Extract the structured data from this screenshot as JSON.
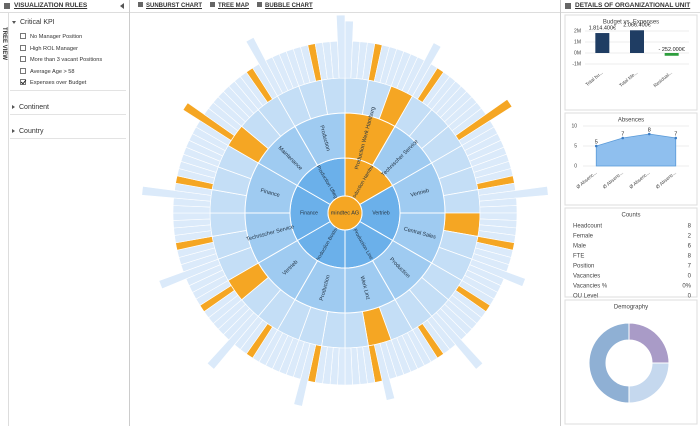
{
  "left_panel": {
    "title": "VISUALIZATION RULES",
    "side_tab": "TREE VIEW",
    "sections": [
      {
        "label": "Critical KPI",
        "expanded": true,
        "items": [
          {
            "label": "No Manager Position",
            "checked": false
          },
          {
            "label": "High ROL Manager",
            "checked": false
          },
          {
            "label": "More than 3 vacant Positions",
            "checked": false
          },
          {
            "label": "Average Age > 58",
            "checked": false
          },
          {
            "label": "Expenses over Budget",
            "checked": true
          }
        ]
      },
      {
        "label": "Continent",
        "expanded": false
      },
      {
        "label": "Country",
        "expanded": false
      }
    ]
  },
  "tabs": [
    "SUNBURST CHART",
    "TREE MAP",
    "BUBBLE CHART"
  ],
  "sunburst": {
    "center": {
      "label": "mindtec AG",
      "highlight": true
    },
    "nodes": [
      {
        "label": "Production Hamburg",
        "highlight": true,
        "children": [
          {
            "label": "Production Werk Hamburg",
            "highlight": true
          },
          {
            "label": "Technischer Service",
            "highlight": false
          }
        ]
      },
      {
        "label": "Vertrieb",
        "highlight": false,
        "children": [
          {
            "label": "Vertrieb",
            "highlight": false
          },
          {
            "label": "Central Sales",
            "highlight": false
          }
        ]
      },
      {
        "label": "Production Linz",
        "highlight": false,
        "children": [
          {
            "label": "Production",
            "highlight": false
          },
          {
            "label": "Werk Linz",
            "highlight": false
          }
        ]
      },
      {
        "label": "Production Boston",
        "highlight": false,
        "children": [
          {
            "label": "Production",
            "highlight": false
          },
          {
            "label": "Vertrieb",
            "highlight": false
          }
        ]
      },
      {
        "label": "Finance",
        "highlight": false,
        "children": [
          {
            "label": "Technischer Service",
            "highlight": false
          },
          {
            "label": "Finance",
            "highlight": false
          }
        ]
      },
      {
        "label": "Production Ufteg",
        "highlight": false,
        "children": [
          {
            "label": "Maintenance",
            "highlight": false
          },
          {
            "label": "Production",
            "highlight": false
          }
        ]
      }
    ]
  },
  "details": {
    "title": "DETAILS OF ORGANIZATIONAL UNIT",
    "budget_chart": {
      "type": "bar",
      "title": "Budget vs. Expenses",
      "categories": [
        "Total bu...",
        "Total Ide...",
        "Residual..."
      ],
      "values": [
        1814400,
        2066400,
        -252000
      ],
      "value_labels": [
        "1.814.400€",
        "2.066.400€",
        "- 252.000€"
      ],
      "colors": [
        "#1f3d63",
        "#1f3d63",
        "#2e9e3e"
      ],
      "ylim": [
        -1000000,
        2000000
      ],
      "yticks": [
        {
          "value": -1000000,
          "label": "-1M"
        },
        {
          "value": 0,
          "label": "0M"
        },
        {
          "value": 1000000,
          "label": "1M"
        },
        {
          "value": 2000000,
          "label": "2M"
        }
      ]
    },
    "absences_chart": {
      "type": "area",
      "title": "Absences",
      "categories": [
        "Ø Absenc...",
        "Ø Absenc...",
        "Ø Absenc...",
        "Ø Absenc..."
      ],
      "values": [
        5,
        7,
        8,
        7
      ],
      "color": "#8fbfee",
      "ylim": [
        0,
        10
      ],
      "yticks": [
        0,
        5,
        10
      ]
    },
    "counts": {
      "title": "Counts",
      "rows": [
        [
          "Headcount",
          8
        ],
        [
          "Female",
          2
        ],
        [
          "Male",
          6
        ],
        [
          "FTE",
          8
        ],
        [
          "Position",
          7
        ],
        [
          "Vacancies",
          0
        ],
        [
          "Vacancies %",
          "0%"
        ],
        [
          "OU Level",
          0
        ]
      ]
    },
    "demography": {
      "type": "donut",
      "title": "Demography",
      "values": [
        25,
        25,
        50
      ],
      "colors": [
        "#a99bc7",
        "#c5d8ee",
        "#8fb0d4"
      ]
    }
  }
}
